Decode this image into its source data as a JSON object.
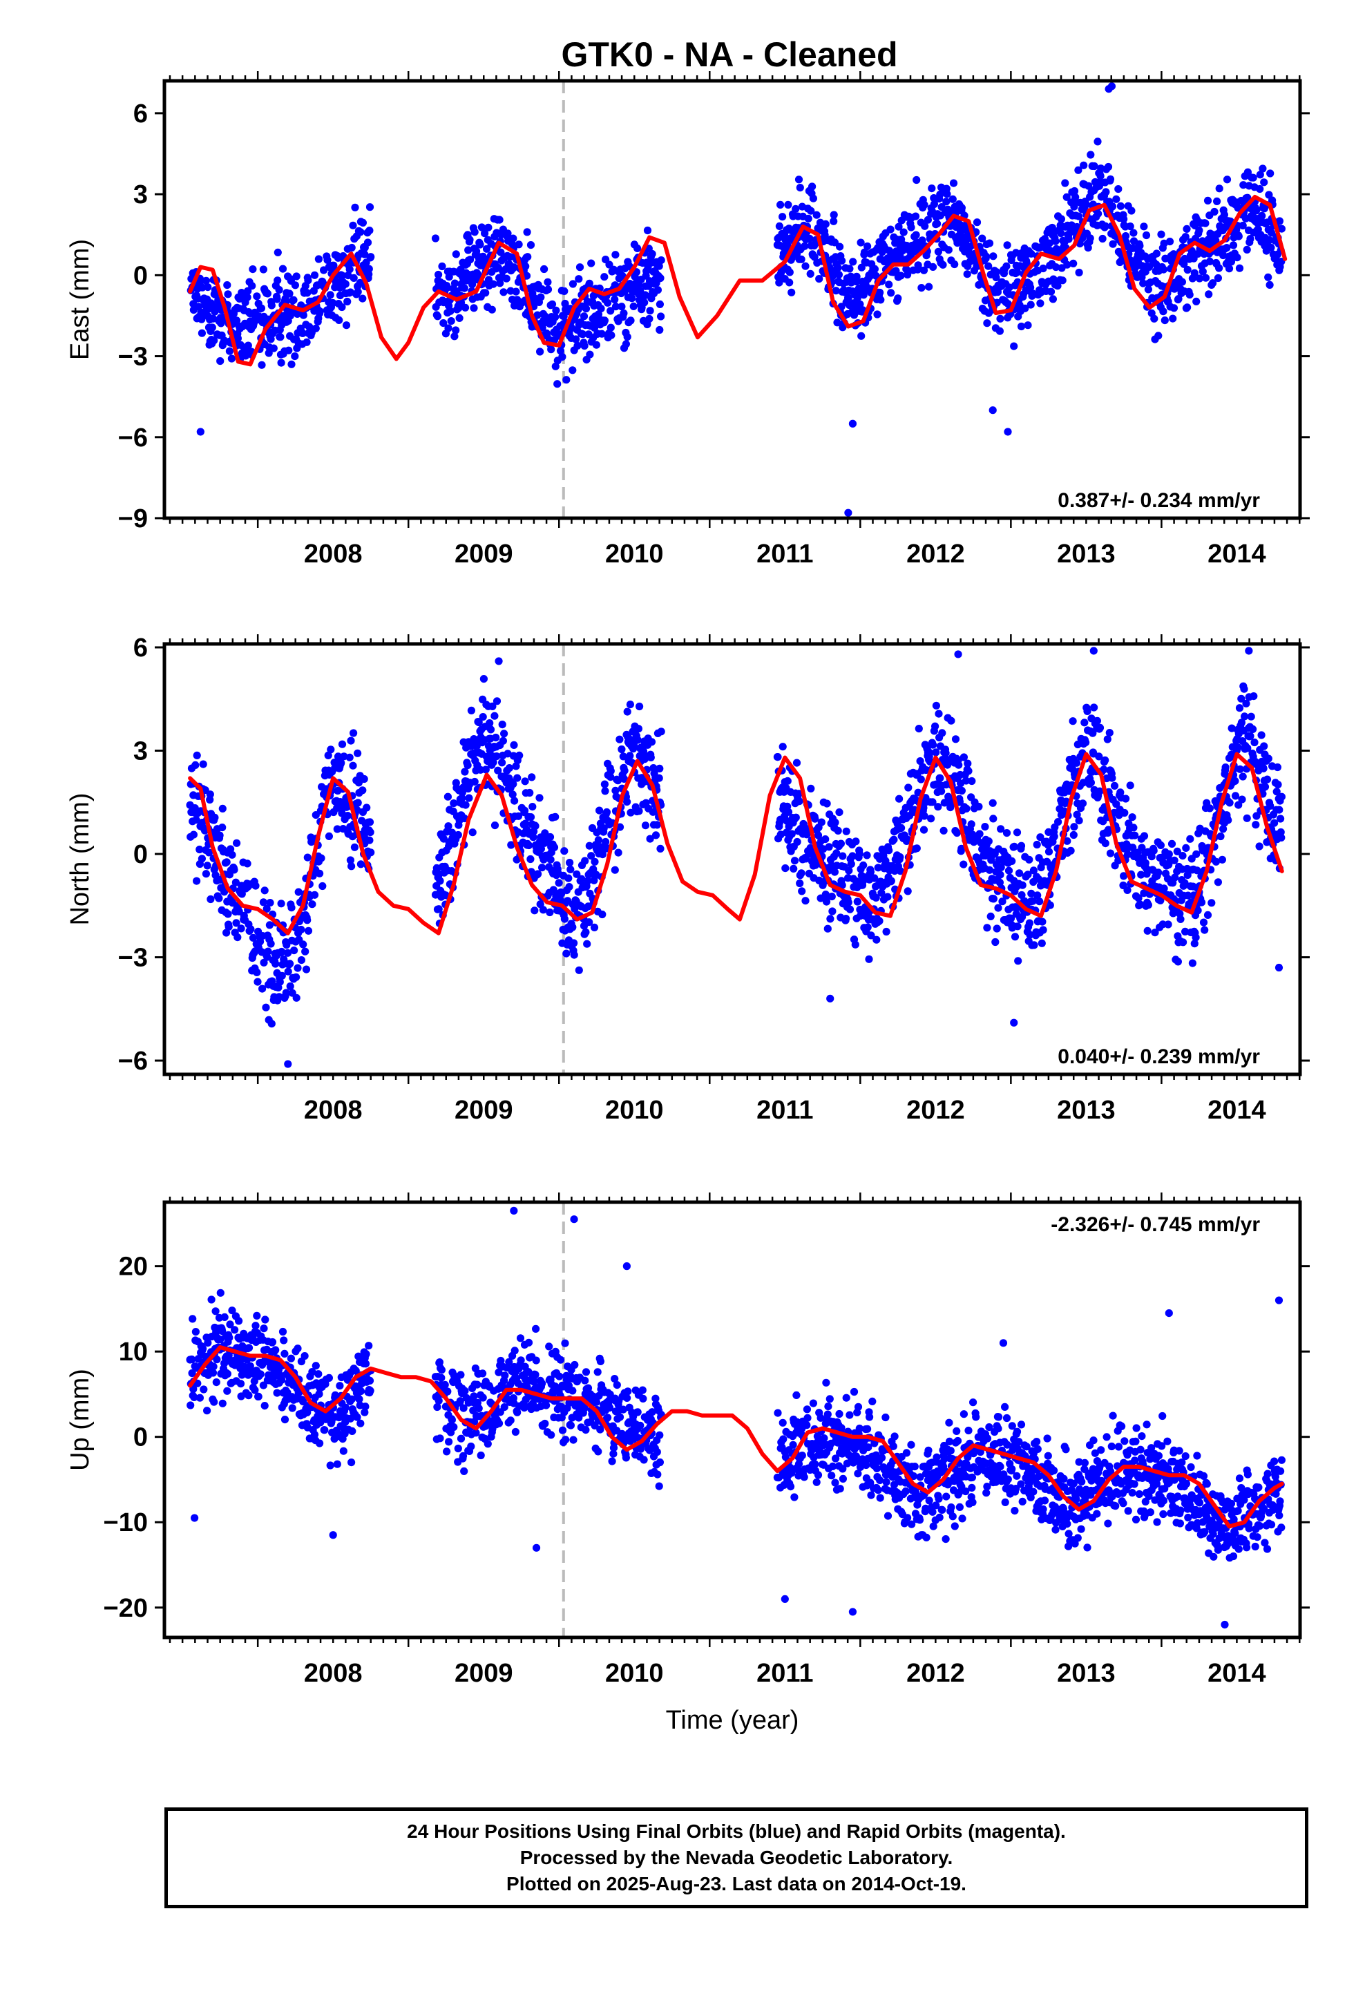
{
  "title": "GTK0  - NA - Cleaned",
  "colors": {
    "points": "#0000ff",
    "fit": "#ff0000",
    "reference_line": "#bbbbbb"
  },
  "footer": {
    "line1": "24 Hour Positions Using Final Orbits (blue) and Rapid Orbits (magenta).",
    "line2": "Processed by the Nevada Geodetic Laboratory.",
    "line3": "Plotted on 2025-Aug-23. Last data on 2014-Oct-19."
  },
  "chart_data": [
    {
      "type": "scatter",
      "ylabel": "East (mm)",
      "xlim": [
        2007.38,
        2014.92
      ],
      "ylim": [
        -9,
        7.2
      ],
      "yticks": [
        6,
        3,
        0,
        -3,
        -6,
        -9
      ],
      "xticks": [
        2008,
        2009,
        2010,
        2011,
        2012,
        2013,
        2014
      ],
      "xlabel": "",
      "reference_line_x": 2010.03,
      "rate_label": "0.387+/- 0.234 mm/yr",
      "rate_position": "bottom-right",
      "series": [
        {
          "kind": "points",
          "segments": [
            [
              2007.55,
              2008.75
            ],
            [
              2009.18,
              2010.68
            ],
            [
              2011.45,
              2014.8
            ]
          ],
          "trend": [
            [
              2007.55,
              -0.8
            ],
            [
              2007.9,
              -2.0
            ],
            [
              2008.3,
              -1.2
            ],
            [
              2008.75,
              0.8
            ],
            [
              2009.2,
              -0.8
            ],
            [
              2009.6,
              0.8
            ],
            [
              2010.0,
              -2.0
            ],
            [
              2010.3,
              -1.0
            ],
            [
              2010.68,
              0.0
            ],
            [
              2011.45,
              0.8
            ],
            [
              2011.65,
              1.8
            ],
            [
              2011.95,
              -1.0
            ],
            [
              2012.3,
              1.0
            ],
            [
              2012.6,
              2.2
            ],
            [
              2012.95,
              -1.0
            ],
            [
              2013.3,
              0.8
            ],
            [
              2013.6,
              3.2
            ],
            [
              2013.95,
              -0.5
            ],
            [
              2014.3,
              0.8
            ],
            [
              2014.6,
              2.5
            ],
            [
              2014.8,
              1.0
            ]
          ],
          "spread": 1.3,
          "outliers": [
            [
              2011.92,
              -8.8
            ],
            [
              2007.62,
              -5.8
            ],
            [
              2012.98,
              -5.8
            ],
            [
              2013.67,
              7.0
            ],
            [
              2013.65,
              6.9
            ],
            [
              2012.88,
              -5.0
            ],
            [
              2011.95,
              -5.5
            ]
          ]
        },
        {
          "kind": "line",
          "name": "",
          "x": [
            2007.55,
            2007.62,
            2007.7,
            2007.78,
            2007.87,
            2007.95,
            2008.05,
            2008.18,
            2008.3,
            2008.4,
            2008.5,
            2008.62,
            2008.72,
            2008.82,
            2008.92,
            2009.0,
            2009.1,
            2009.2,
            2009.32,
            2009.45,
            2009.6,
            2009.72,
            2009.82,
            2009.9,
            2010.0,
            2010.1,
            2010.2,
            2010.3,
            2010.4,
            2010.5,
            2010.6,
            2010.7,
            2010.8,
            2010.92,
            2011.05,
            2011.2,
            2011.35,
            2011.5,
            2011.62,
            2011.72,
            2011.82,
            2011.92,
            2012.02,
            2012.12,
            2012.22,
            2012.32,
            2012.42,
            2012.52,
            2012.62,
            2012.72,
            2012.82,
            2012.9,
            2013.0,
            2013.1,
            2013.2,
            2013.32,
            2013.42,
            2013.52,
            2013.62,
            2013.72,
            2013.82,
            2013.92,
            2014.02,
            2014.12,
            2014.22,
            2014.32,
            2014.42,
            2014.52,
            2014.62,
            2014.72,
            2014.82
          ],
          "y": [
            -0.6,
            0.3,
            0.2,
            -1.2,
            -3.2,
            -3.3,
            -2.0,
            -1.1,
            -1.3,
            -1.0,
            0.0,
            0.8,
            -0.3,
            -2.3,
            -3.1,
            -2.5,
            -1.2,
            -0.6,
            -0.9,
            -0.6,
            1.2,
            0.8,
            -1.5,
            -2.5,
            -2.6,
            -1.2,
            -0.5,
            -0.7,
            -0.5,
            0.3,
            1.4,
            1.2,
            -0.8,
            -2.3,
            -1.5,
            -0.2,
            -0.2,
            0.5,
            1.8,
            1.5,
            -1.0,
            -1.9,
            -1.7,
            -0.2,
            0.4,
            0.4,
            0.9,
            1.5,
            2.2,
            2.0,
            0.0,
            -1.4,
            -1.3,
            0.1,
            0.8,
            0.6,
            1.1,
            2.4,
            2.6,
            1.5,
            -0.5,
            -1.2,
            -0.8,
            0.8,
            1.2,
            0.9,
            1.3,
            2.3,
            2.9,
            2.6,
            0.6
          ]
        }
      ]
    },
    {
      "type": "scatter",
      "ylabel": "North (mm)",
      "xlim": [
        2007.38,
        2014.92
      ],
      "ylim": [
        -6.4,
        6.1
      ],
      "yticks": [
        6,
        3,
        0,
        -3,
        -6
      ],
      "xticks": [
        2008,
        2009,
        2010,
        2011,
        2012,
        2013,
        2014
      ],
      "xlabel": "",
      "reference_line_x": 2010.03,
      "rate_label": "0.040+/- 0.239 mm/yr",
      "rate_position": "bottom-right",
      "series": [
        {
          "kind": "points",
          "segments": [
            [
              2007.55,
              2008.75
            ],
            [
              2009.18,
              2010.68
            ],
            [
              2011.45,
              2014.8
            ]
          ],
          "trend": [
            [
              2007.55,
              1.5
            ],
            [
              2007.75,
              0.0
            ],
            [
              2008.1,
              -3.5
            ],
            [
              2008.25,
              -2.8
            ],
            [
              2008.5,
              2.0
            ],
            [
              2008.7,
              1.0
            ],
            [
              2009.2,
              -1.0
            ],
            [
              2009.5,
              3.5
            ],
            [
              2009.8,
              0.5
            ],
            [
              2010.1,
              -2.0
            ],
            [
              2010.5,
              3.0
            ],
            [
              2010.68,
              1.5
            ],
            [
              2011.45,
              2.0
            ],
            [
              2011.7,
              0.0
            ],
            [
              2012.1,
              -1.5
            ],
            [
              2012.5,
              3.0
            ],
            [
              2012.8,
              0.0
            ],
            [
              2013.15,
              -1.8
            ],
            [
              2013.5,
              3.2
            ],
            [
              2013.8,
              0.0
            ],
            [
              2014.2,
              -1.5
            ],
            [
              2014.55,
              3.5
            ],
            [
              2014.8,
              0.5
            ]
          ],
          "spread": 1.3,
          "outliers": [
            [
              2008.2,
              -6.1
            ],
            [
              2012.65,
              5.8
            ],
            [
              2013.55,
              5.9
            ],
            [
              2014.58,
              5.9
            ],
            [
              2013.02,
              -4.9
            ],
            [
              2014.78,
              -3.3
            ],
            [
              2011.8,
              -4.2
            ],
            [
              2009.6,
              5.6
            ]
          ]
        },
        {
          "kind": "line",
          "name": "",
          "x": [
            2007.55,
            2007.62,
            2007.7,
            2007.8,
            2007.9,
            2008.0,
            2008.1,
            2008.2,
            2008.3,
            2008.4,
            2008.5,
            2008.6,
            2008.7,
            2008.8,
            2008.9,
            2009.0,
            2009.1,
            2009.2,
            2009.3,
            2009.4,
            2009.52,
            2009.62,
            2009.72,
            2009.82,
            2009.92,
            2010.02,
            2010.12,
            2010.22,
            2010.32,
            2010.42,
            2010.52,
            2010.62,
            2010.72,
            2010.82,
            2010.92,
            2011.02,
            2011.12,
            2011.2,
            2011.3,
            2011.4,
            2011.5,
            2011.6,
            2011.7,
            2011.8,
            2011.9,
            2012.0,
            2012.1,
            2012.2,
            2012.3,
            2012.4,
            2012.5,
            2012.6,
            2012.7,
            2012.8,
            2012.9,
            2013.0,
            2013.1,
            2013.2,
            2013.3,
            2013.4,
            2013.5,
            2013.6,
            2013.7,
            2013.8,
            2013.9,
            2014.0,
            2014.1,
            2014.2,
            2014.3,
            2014.4,
            2014.5,
            2014.6,
            2014.7,
            2014.8
          ],
          "y": [
            2.2,
            1.9,
            0.2,
            -1.0,
            -1.5,
            -1.6,
            -1.9,
            -2.3,
            -1.5,
            0.5,
            2.2,
            1.8,
            0.0,
            -1.1,
            -1.5,
            -1.6,
            -2.0,
            -2.3,
            -0.9,
            1.0,
            2.3,
            1.7,
            0.2,
            -0.9,
            -1.4,
            -1.5,
            -1.9,
            -1.7,
            -0.3,
            1.7,
            2.7,
            2.0,
            0.3,
            -0.8,
            -1.1,
            -1.2,
            -1.6,
            -1.9,
            -0.6,
            1.7,
            2.8,
            2.2,
            0.2,
            -0.9,
            -1.1,
            -1.2,
            -1.7,
            -1.8,
            -0.5,
            1.6,
            2.8,
            2.1,
            0.2,
            -0.9,
            -1.0,
            -1.2,
            -1.6,
            -1.8,
            -0.5,
            1.6,
            2.9,
            2.3,
            0.3,
            -0.8,
            -1.0,
            -1.2,
            -1.5,
            -1.7,
            -0.5,
            1.5,
            2.9,
            2.5,
            0.8,
            -0.5
          ]
        }
      ]
    },
    {
      "type": "scatter",
      "ylabel": "Up (mm)",
      "xlabel": "Time (year)",
      "xlim": [
        2007.38,
        2014.92
      ],
      "ylim": [
        -23.5,
        27.5
      ],
      "yticks": [
        20,
        10,
        0,
        -10,
        -20
      ],
      "xticks": [
        2008,
        2009,
        2010,
        2011,
        2012,
        2013,
        2014
      ],
      "reference_line_x": 2010.03,
      "rate_label": "-2.326+/- 0.745 mm/yr",
      "rate_position": "top-right",
      "series": [
        {
          "kind": "points",
          "segments": [
            [
              2007.55,
              2008.75
            ],
            [
              2009.18,
              2010.68
            ],
            [
              2011.45,
              2014.8
            ]
          ],
          "trend": [
            [
              2007.55,
              8.0
            ],
            [
              2007.75,
              10.5
            ],
            [
              2008.1,
              8.0
            ],
            [
              2008.4,
              3.0
            ],
            [
              2008.6,
              3.0
            ],
            [
              2008.75,
              7.0
            ],
            [
              2009.2,
              5.0
            ],
            [
              2009.4,
              2.0
            ],
            [
              2009.7,
              6.0
            ],
            [
              2010.0,
              5.0
            ],
            [
              2010.3,
              3.0
            ],
            [
              2010.68,
              0.0
            ],
            [
              2011.45,
              -3.0
            ],
            [
              2011.7,
              0.0
            ],
            [
              2012.0,
              -1.0
            ],
            [
              2012.4,
              -7.0
            ],
            [
              2012.8,
              -2.0
            ],
            [
              2013.1,
              -4.0
            ],
            [
              2013.4,
              -9.0
            ],
            [
              2013.7,
              -4.0
            ],
            [
              2014.0,
              -4.0
            ],
            [
              2014.4,
              -11.0
            ],
            [
              2014.8,
              -6.0
            ]
          ],
          "spread": 4.0,
          "outliers": [
            [
              2009.7,
              26.5
            ],
            [
              2010.1,
              25.5
            ],
            [
              2010.45,
              20.0
            ],
            [
              2007.58,
              -9.5
            ],
            [
              2009.85,
              -13.0
            ],
            [
              2014.05,
              14.5
            ],
            [
              2014.78,
              16.0
            ],
            [
              2014.42,
              -22.0
            ],
            [
              2012.95,
              11.0
            ],
            [
              2011.5,
              -19.0
            ],
            [
              2011.95,
              -20.5
            ],
            [
              2008.5,
              -11.5
            ]
          ]
        },
        {
          "kind": "line",
          "name": "",
          "x": [
            2007.55,
            2007.65,
            2007.75,
            2007.85,
            2007.95,
            2008.05,
            2008.15,
            2008.25,
            2008.35,
            2008.45,
            2008.55,
            2008.65,
            2008.75,
            2008.85,
            2008.95,
            2009.05,
            2009.15,
            2009.25,
            2009.35,
            2009.45,
            2009.55,
            2009.65,
            2009.75,
            2009.85,
            2009.95,
            2010.05,
            2010.15,
            2010.25,
            2010.35,
            2010.45,
            2010.55,
            2010.65,
            2010.75,
            2010.85,
            2010.95,
            2011.05,
            2011.15,
            2011.25,
            2011.35,
            2011.45,
            2011.55,
            2011.65,
            2011.75,
            2011.85,
            2011.95,
            2012.05,
            2012.15,
            2012.25,
            2012.35,
            2012.45,
            2012.55,
            2012.65,
            2012.75,
            2012.85,
            2012.95,
            2013.05,
            2013.15,
            2013.25,
            2013.35,
            2013.45,
            2013.55,
            2013.65,
            2013.75,
            2013.85,
            2013.95,
            2014.05,
            2014.15,
            2014.25,
            2014.35,
            2014.45,
            2014.55,
            2014.65,
            2014.75,
            2014.8
          ],
          "y": [
            6.0,
            8.5,
            10.5,
            10.0,
            9.5,
            9.5,
            9.0,
            7.0,
            4.0,
            3.0,
            4.5,
            7.0,
            8.0,
            7.5,
            7.0,
            7.0,
            6.5,
            4.5,
            2.0,
            1.0,
            3.0,
            5.5,
            5.5,
            5.0,
            4.5,
            4.5,
            4.5,
            3.0,
            0.0,
            -1.5,
            -0.5,
            1.5,
            3.0,
            3.0,
            2.5,
            2.5,
            2.5,
            1.0,
            -2.0,
            -4.0,
            -2.5,
            0.5,
            1.0,
            0.5,
            0.0,
            0.0,
            -0.5,
            -3.0,
            -5.5,
            -6.5,
            -5.0,
            -2.5,
            -1.0,
            -1.5,
            -2.0,
            -2.5,
            -3.0,
            -4.5,
            -7.0,
            -8.5,
            -7.5,
            -5.0,
            -3.5,
            -3.5,
            -4.0,
            -4.5,
            -4.5,
            -5.5,
            -8.0,
            -10.5,
            -10.0,
            -7.5,
            -6.0,
            -5.5
          ]
        }
      ]
    }
  ]
}
